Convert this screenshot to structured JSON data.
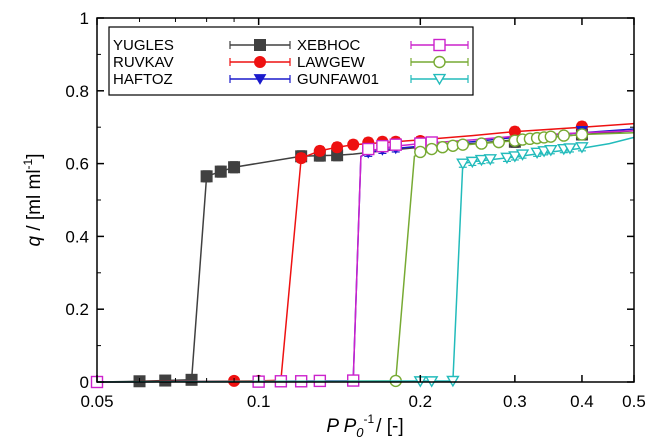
{
  "chart_data": {
    "type": "line",
    "x_scale": "log",
    "xlim": [
      0.05,
      0.5
    ],
    "ylim": [
      0,
      1
    ],
    "xlabel": {
      "var": "P P",
      "sub": "0",
      "sup": "-1",
      "unit": "/ [-]"
    },
    "ylabel": {
      "var": "q",
      "unit": " / [ml ml",
      "sup": "-1",
      "end": "]"
    },
    "x_ticks": [
      {
        "value": 0.05,
        "label": "0.05"
      },
      {
        "value": 0.1,
        "label": "0.1"
      },
      {
        "value": 0.2,
        "label": "0.2"
      },
      {
        "value": 0.3,
        "label": "0.3"
      },
      {
        "value": 0.4,
        "label": "0.4"
      },
      {
        "value": 0.5,
        "label": "0.5"
      }
    ],
    "y_ticks": [
      {
        "value": 0,
        "label": "0"
      },
      {
        "value": 0.2,
        "label": "0.2"
      },
      {
        "value": 0.4,
        "label": "0.4"
      },
      {
        "value": 0.6,
        "label": "0.6"
      },
      {
        "value": 0.8,
        "label": "0.8"
      },
      {
        "value": 1,
        "label": "1"
      }
    ],
    "legend_position": "top-left",
    "series": [
      {
        "name": "YUGLES",
        "color": "#404040",
        "marker": "square-filled",
        "x": [
          0.05,
          0.06,
          0.067,
          0.075,
          0.08,
          0.085,
          0.09,
          0.12,
          0.13,
          0.14,
          0.15,
          0.17,
          0.2,
          0.25,
          0.3,
          0.4,
          0.5
        ],
        "y": [
          0.0,
          0.002,
          0.004,
          0.006,
          0.565,
          0.578,
          0.59,
          0.62,
          0.622,
          0.623,
          0.626,
          0.635,
          0.645,
          0.655,
          0.665,
          0.68,
          0.69
        ],
        "markers": [
          [
            0.05,
            0.0
          ],
          [
            0.06,
            0.002
          ],
          [
            0.067,
            0.004
          ],
          [
            0.075,
            0.006
          ],
          [
            0.08,
            0.565
          ],
          [
            0.085,
            0.578
          ],
          [
            0.09,
            0.59
          ],
          [
            0.12,
            0.62
          ],
          [
            0.13,
            0.622
          ],
          [
            0.14,
            0.623
          ],
          [
            0.3,
            0.66
          ],
          [
            0.4,
            0.68
          ]
        ],
        "err": 0.015
      },
      {
        "name": "RUVKAV",
        "color": "#ee1111",
        "marker": "circle-filled",
        "x": [
          0.05,
          0.1,
          0.11,
          0.12,
          0.13,
          0.14,
          0.15,
          0.2,
          0.25,
          0.3,
          0.4,
          0.5
        ],
        "y": [
          0.0,
          0.003,
          0.005,
          0.615,
          0.635,
          0.645,
          0.652,
          0.665,
          0.677,
          0.688,
          0.7,
          0.71
        ],
        "markers": [
          [
            0.05,
            0.0
          ],
          [
            0.09,
            0.003
          ],
          [
            0.1,
            0.003
          ],
          [
            0.12,
            0.615
          ],
          [
            0.13,
            0.635
          ],
          [
            0.14,
            0.645
          ],
          [
            0.15,
            0.652
          ],
          [
            0.16,
            0.658
          ],
          [
            0.17,
            0.66
          ],
          [
            0.18,
            0.66
          ],
          [
            0.2,
            0.662
          ],
          [
            0.3,
            0.688
          ],
          [
            0.4,
            0.702
          ]
        ],
        "err": 0.012
      },
      {
        "name": "HAFTOZ",
        "color": "#1a1acc",
        "marker": "triangle-down-filled",
        "x": [
          0.05,
          0.15,
          0.155,
          0.16,
          0.17,
          0.2,
          0.25,
          0.3,
          0.4,
          0.5
        ],
        "y": [
          0.0,
          0.003,
          0.62,
          0.63,
          0.638,
          0.648,
          0.66,
          0.672,
          0.685,
          0.695
        ],
        "markers": [
          [
            0.16,
            0.63
          ],
          [
            0.17,
            0.638
          ],
          [
            0.18,
            0.642
          ],
          [
            0.4,
            0.69
          ]
        ],
        "err": 0.01
      },
      {
        "name": "XEBHOC",
        "color": "#cc22cc",
        "marker": "square-open",
        "x": [
          0.05,
          0.15,
          0.155,
          0.16,
          0.18,
          0.2,
          0.25,
          0.3,
          0.4,
          0.5
        ],
        "y": [
          0.0,
          0.003,
          0.62,
          0.635,
          0.648,
          0.655,
          0.665,
          0.675,
          0.685,
          0.69
        ],
        "markers": [
          [
            0.05,
            0.0
          ],
          [
            0.1,
            0.001
          ],
          [
            0.11,
            0.002
          ],
          [
            0.12,
            0.002
          ],
          [
            0.13,
            0.003
          ],
          [
            0.15,
            0.004
          ],
          [
            0.16,
            0.64
          ],
          [
            0.17,
            0.648
          ],
          [
            0.18,
            0.652
          ],
          [
            0.2,
            0.655
          ],
          [
            0.21,
            0.658
          ]
        ],
        "err": 0.01
      },
      {
        "name": "LAWGEW",
        "color": "#77aa33",
        "marker": "circle-open",
        "x": [
          0.05,
          0.18,
          0.195,
          0.2,
          0.22,
          0.25,
          0.3,
          0.35,
          0.4,
          0.5
        ],
        "y": [
          0.0,
          0.003,
          0.62,
          0.63,
          0.645,
          0.653,
          0.663,
          0.672,
          0.68,
          0.685
        ],
        "markers": [
          [
            0.18,
            0.003
          ],
          [
            0.2,
            0.632
          ],
          [
            0.21,
            0.64
          ],
          [
            0.22,
            0.645
          ],
          [
            0.23,
            0.649
          ],
          [
            0.24,
            0.652
          ],
          [
            0.26,
            0.655
          ],
          [
            0.28,
            0.659
          ],
          [
            0.3,
            0.663
          ],
          [
            0.31,
            0.666
          ],
          [
            0.32,
            0.668
          ],
          [
            0.33,
            0.67
          ],
          [
            0.34,
            0.672
          ],
          [
            0.35,
            0.674
          ],
          [
            0.37,
            0.677
          ],
          [
            0.4,
            0.68
          ]
        ],
        "err": 0.01
      },
      {
        "name": "GUNFAW01",
        "color": "#22bbbb",
        "marker": "triangle-down-open",
        "x": [
          0.05,
          0.23,
          0.24,
          0.25,
          0.3,
          0.35,
          0.4,
          0.45,
          0.5
        ],
        "y": [
          0.0,
          0.003,
          0.6,
          0.605,
          0.618,
          0.632,
          0.642,
          0.655,
          0.672
        ],
        "markers": [
          [
            0.2,
            0.002
          ],
          [
            0.21,
            0.002
          ],
          [
            0.23,
            0.003
          ],
          [
            0.24,
            0.6
          ],
          [
            0.25,
            0.605
          ],
          [
            0.26,
            0.61
          ],
          [
            0.27,
            0.612
          ],
          [
            0.29,
            0.616
          ],
          [
            0.3,
            0.62
          ],
          [
            0.31,
            0.625
          ],
          [
            0.33,
            0.63
          ],
          [
            0.34,
            0.634
          ],
          [
            0.35,
            0.637
          ],
          [
            0.37,
            0.64
          ],
          [
            0.38,
            0.642
          ],
          [
            0.4,
            0.645
          ]
        ],
        "err": 0.01
      }
    ]
  }
}
